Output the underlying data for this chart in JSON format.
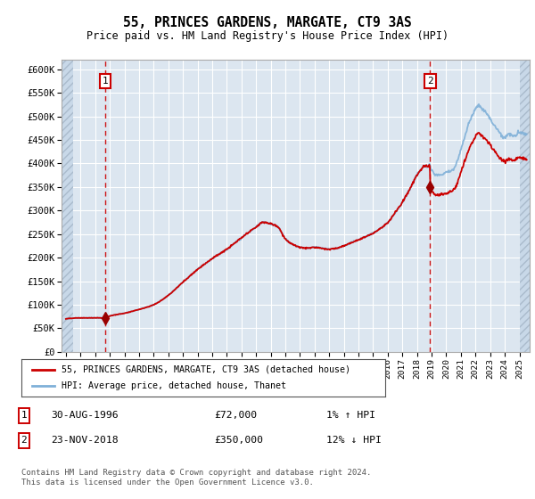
{
  "title": "55, PRINCES GARDENS, MARGATE, CT9 3AS",
  "subtitle": "Price paid vs. HM Land Registry's House Price Index (HPI)",
  "ylim": [
    0,
    620000
  ],
  "yticks": [
    0,
    50000,
    100000,
    150000,
    200000,
    250000,
    300000,
    350000,
    400000,
    450000,
    500000,
    550000,
    600000
  ],
  "ytick_labels": [
    "£0",
    "£50K",
    "£100K",
    "£150K",
    "£200K",
    "£250K",
    "£300K",
    "£350K",
    "£400K",
    "£450K",
    "£500K",
    "£550K",
    "£600K"
  ],
  "xlim_start": 1993.7,
  "xlim_end": 2025.7,
  "xticks": [
    1994,
    1995,
    1996,
    1997,
    1998,
    1999,
    2000,
    2001,
    2002,
    2003,
    2004,
    2005,
    2006,
    2007,
    2008,
    2009,
    2010,
    2011,
    2012,
    2013,
    2014,
    2015,
    2016,
    2017,
    2018,
    2019,
    2020,
    2021,
    2022,
    2023,
    2024,
    2025
  ],
  "background_color": "#ffffff",
  "plot_bg_color": "#dce6f0",
  "hatch_color": "#c8d8e8",
  "grid_color": "#ffffff",
  "sale1_x": 1996.67,
  "sale1_y": 72000,
  "sale2_x": 2018.9,
  "sale2_y": 350000,
  "sale1_label": "1",
  "sale2_label": "2",
  "sale1_date": "30-AUG-1996",
  "sale1_price": "£72,000",
  "sale1_hpi": "1% ↑ HPI",
  "sale2_date": "23-NOV-2018",
  "sale2_price": "£350,000",
  "sale2_hpi": "12% ↓ HPI",
  "legend_line1": "55, PRINCES GARDENS, MARGATE, CT9 3AS (detached house)",
  "legend_line2": "HPI: Average price, detached house, Thanet",
  "footer": "Contains HM Land Registry data © Crown copyright and database right 2024.\nThis data is licensed under the Open Government Licence v3.0.",
  "line_color_red": "#cc0000",
  "line_color_blue": "#7fb0d8",
  "dashed_line_color": "#cc0000",
  "marker_color": "#990000"
}
